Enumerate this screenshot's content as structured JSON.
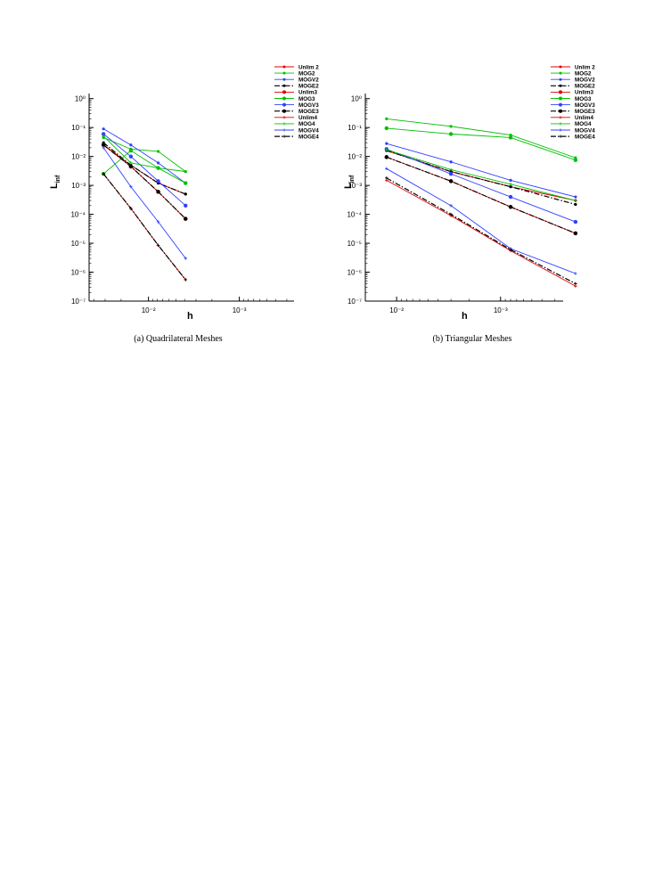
{
  "colors": {
    "red": "#e00000",
    "green": "#00c000",
    "blue": "#3040ff",
    "black": "#000000"
  },
  "chart_data": [
    {
      "type": "line",
      "caption": "(a) Quadrilateral Meshes",
      "xlabel": "h",
      "ylabel": "L",
      "ylabel_sub": "inf",
      "xscale": "log",
      "yscale": "log",
      "x_reversed": true,
      "xlim": [
        0.045,
        0.00025
      ],
      "ylim": [
        1e-07,
        1.5
      ],
      "xticks": [
        {
          "value": 0.01,
          "label": "10⁻²"
        },
        {
          "value": 0.001,
          "label": "10⁻³"
        }
      ],
      "yticks": [
        {
          "value": 1,
          "label": "10⁰"
        },
        {
          "value": 0.1,
          "label": "10⁻¹"
        },
        {
          "value": 0.01,
          "label": "10⁻²"
        },
        {
          "value": 0.001,
          "label": "10⁻³"
        },
        {
          "value": 0.0001,
          "label": "10⁻⁴"
        },
        {
          "value": 1e-05,
          "label": "10⁻⁵"
        },
        {
          "value": 1e-06,
          "label": "10⁻⁶"
        },
        {
          "value": 1e-07,
          "label": "10⁻⁷"
        }
      ],
      "legend_position": "top-right",
      "x": [
        0.03125,
        0.015625,
        0.0078125,
        0.00390625
      ],
      "series": [
        {
          "name": "Unlim 2",
          "color": "red",
          "dash": "solid",
          "marker": "dot",
          "values": [
            0.025,
            0.005,
            0.0012,
            0.0005
          ]
        },
        {
          "name": "MOG2",
          "color": "green",
          "dash": "solid",
          "marker": "dot",
          "values": [
            0.045,
            0.018,
            0.015,
            0.003
          ]
        },
        {
          "name": "MOGV2",
          "color": "blue",
          "dash": "solid",
          "marker": "dot",
          "values": [
            0.09,
            0.025,
            0.006,
            0.0012
          ]
        },
        {
          "name": "MOGE2",
          "color": "black",
          "dash": "dashdot",
          "marker": "dot",
          "values": [
            0.03,
            0.005,
            0.0012,
            0.0005
          ]
        },
        {
          "name": "Unlim3",
          "color": "red",
          "dash": "solid",
          "marker": "bigdot",
          "values": [
            0.025,
            0.0045,
            0.0006,
            7e-05
          ]
        },
        {
          "name": "MOG3",
          "color": "green",
          "dash": "solid",
          "marker": "bigdot",
          "values": [
            0.0025,
            0.016,
            0.004,
            0.0012
          ]
        },
        {
          "name": "MOGV3",
          "color": "blue",
          "dash": "solid",
          "marker": "bigdot",
          "values": [
            0.06,
            0.01,
            0.0014,
            0.0002
          ]
        },
        {
          "name": "MOGE3",
          "color": "black",
          "dash": "dashdot",
          "marker": "bigdot",
          "values": [
            0.025,
            0.0045,
            0.0006,
            7e-05
          ]
        },
        {
          "name": "Unlim4",
          "color": "red",
          "dash": "solid",
          "marker": "plus",
          "values": [
            0.0025,
            0.00016,
            8.5e-06,
            5.5e-07
          ]
        },
        {
          "name": "MOG4",
          "color": "green",
          "dash": "solid",
          "marker": "plus",
          "values": [
            0.05,
            0.006,
            0.004,
            0.003
          ]
        },
        {
          "name": "MOGV4",
          "color": "blue",
          "dash": "solid",
          "marker": "plus",
          "values": [
            0.02,
            0.0009,
            5.5e-05,
            3e-06
          ]
        },
        {
          "name": "MOGE4",
          "color": "black",
          "dash": "dashdot",
          "marker": "plus",
          "values": [
            0.0025,
            0.00016,
            8.5e-06,
            5.5e-07
          ]
        }
      ]
    },
    {
      "type": "line",
      "caption": "(b) Triangular Meshes",
      "xlabel": "h",
      "ylabel": "L",
      "ylabel_sub": "inf",
      "xscale": "log",
      "yscale": "log",
      "x_reversed": true,
      "xlim": [
        0.02,
        0.00025
      ],
      "ylim": [
        1e-07,
        1.5
      ],
      "xticks": [
        {
          "value": 0.01,
          "label": "10⁻²"
        },
        {
          "value": 0.001,
          "label": "10⁻³"
        }
      ],
      "yticks": [
        {
          "value": 1,
          "label": "10⁰"
        },
        {
          "value": 0.1,
          "label": "10⁻¹"
        },
        {
          "value": 0.01,
          "label": "10⁻²"
        },
        {
          "value": 0.001,
          "label": "10⁻³"
        },
        {
          "value": 0.0001,
          "label": "10⁻⁴"
        },
        {
          "value": 1e-05,
          "label": "10⁻⁵"
        },
        {
          "value": 1e-06,
          "label": "10⁻⁶"
        },
        {
          "value": 1e-07,
          "label": "10⁻⁷"
        }
      ],
      "legend_position": "top-right",
      "x": [
        0.0125,
        0.003,
        0.0008,
        0.00019
      ],
      "series": [
        {
          "name": "Unlim 2",
          "color": "red",
          "dash": "solid",
          "marker": "dot",
          "values": [
            0.016,
            0.003,
            0.0009,
            0.0003
          ]
        },
        {
          "name": "MOG2",
          "color": "green",
          "dash": "solid",
          "marker": "dot",
          "values": [
            0.2,
            0.11,
            0.055,
            0.009
          ]
        },
        {
          "name": "MOGV2",
          "color": "blue",
          "dash": "solid",
          "marker": "dot",
          "values": [
            0.028,
            0.0065,
            0.0015,
            0.0004
          ]
        },
        {
          "name": "MOGE2",
          "color": "black",
          "dash": "dashdot",
          "marker": "dot",
          "values": [
            0.016,
            0.003,
            0.0009,
            0.00022
          ]
        },
        {
          "name": "Unlim3",
          "color": "red",
          "dash": "solid",
          "marker": "bigdot",
          "values": [
            0.0095,
            0.0014,
            0.00018,
            2.2e-05
          ]
        },
        {
          "name": "MOG3",
          "color": "green",
          "dash": "solid",
          "marker": "bigdot",
          "values": [
            0.095,
            0.06,
            0.045,
            0.0075
          ]
        },
        {
          "name": "MOGV3",
          "color": "blue",
          "dash": "solid",
          "marker": "bigdot",
          "values": [
            0.018,
            0.0025,
            0.0004,
            5.5e-05
          ]
        },
        {
          "name": "MOGE3",
          "color": "black",
          "dash": "dashdot",
          "marker": "bigdot",
          "values": [
            0.0095,
            0.0014,
            0.00018,
            2.2e-05
          ]
        },
        {
          "name": "Unlim4",
          "color": "red",
          "dash": "solid",
          "marker": "plus",
          "values": [
            0.0015,
            9e-05,
            5.5e-06,
            3.3e-07
          ]
        },
        {
          "name": "MOG4",
          "color": "green",
          "dash": "solid",
          "marker": "plus",
          "values": [
            0.017,
            0.0035,
            0.0011,
            0.0003
          ]
        },
        {
          "name": "MOGV4",
          "color": "blue",
          "dash": "solid",
          "marker": "plus",
          "values": [
            0.0038,
            0.0002,
            6.5e-06,
            9e-07
          ]
        },
        {
          "name": "MOGE4",
          "color": "black",
          "dash": "dashdot",
          "marker": "plus",
          "values": [
            0.0018,
            0.0001,
            6e-06,
            4e-07
          ]
        }
      ]
    }
  ]
}
